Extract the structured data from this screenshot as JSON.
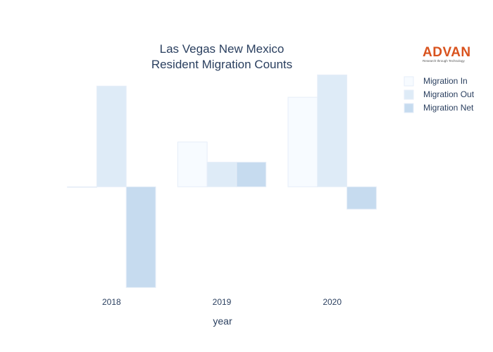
{
  "logo": {
    "word": "ADVAN",
    "tagline": "Research through Technology"
  },
  "chart_data": {
    "type": "bar",
    "title_lines": [
      "Las Vegas New Mexico",
      "Resident Migration Counts"
    ],
    "xlabel": "year",
    "ylabel": "",
    "categories": [
      "2018",
      "2019",
      "2020"
    ],
    "series": [
      {
        "name": "Migration In",
        "color": "#f7fbff",
        "values": [
          0,
          2,
          4
        ]
      },
      {
        "name": "Migration Out",
        "color": "#deebf7",
        "values": [
          4.5,
          1.1,
          5
        ]
      },
      {
        "name": "Migration Net",
        "color": "#c6dbef",
        "values": [
          -4.5,
          1.1,
          -1
        ]
      }
    ],
    "ylim": [
      -4.55,
      5.2
    ],
    "grid": false,
    "legend_position": "top-right"
  }
}
